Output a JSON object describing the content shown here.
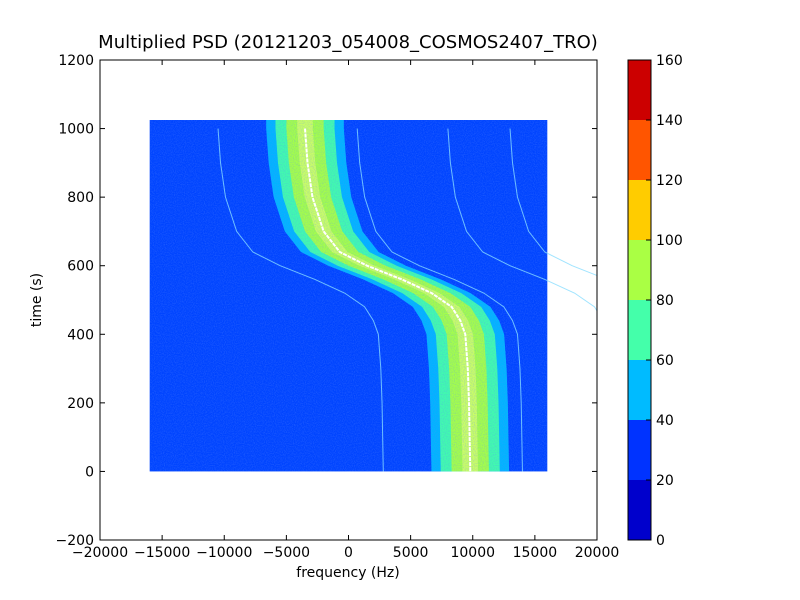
{
  "chart_data": {
    "type": "heatmap",
    "title": "Multiplied PSD (20121203_054008_COSMOS2407_TRO)",
    "xlabel": "frequency (Hz)",
    "ylabel": "time (s)",
    "xlim": [
      -20000,
      20000
    ],
    "ylim": [
      -200,
      1200
    ],
    "x_ticks": [
      "−20000",
      "−15000",
      "−10000",
      "−5000",
      "0",
      "5000",
      "10000",
      "15000",
      "20000"
    ],
    "y_ticks": [
      "−200",
      "0",
      "200",
      "400",
      "600",
      "800",
      "1000",
      "1200"
    ],
    "data_extent": {
      "x": [
        -16000,
        16000
      ],
      "y": [
        0,
        1025
      ]
    },
    "grid": false,
    "colorbar": {
      "ticks": [
        "0",
        "20",
        "40",
        "60",
        "80",
        "100",
        "120",
        "140",
        "160"
      ],
      "levels": [
        0,
        20,
        40,
        60,
        80,
        100,
        120,
        140,
        160
      ],
      "colors": [
        "#0000cc",
        "#0033ff",
        "#00bbff",
        "#44ffaa",
        "#aaff44",
        "#ffcc00",
        "#ff5500",
        "#cc0000"
      ]
    },
    "background_level_color": "#0044ff",
    "doppler_center_curve": {
      "time": [
        1000,
        900,
        800,
        700,
        640,
        600,
        560,
        520,
        480,
        440,
        400,
        300,
        200,
        100,
        0
      ],
      "frequency": [
        -3500,
        -3300,
        -2900,
        -2000,
        -700,
        1500,
        4300,
        6700,
        8300,
        9000,
        9400,
        9600,
        9700,
        9750,
        9800
      ]
    },
    "band_half_width_hz": 2500
  }
}
